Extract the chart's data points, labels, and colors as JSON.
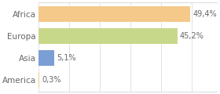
{
  "categories": [
    "Africa",
    "Europa",
    "Asia",
    "America"
  ],
  "values": [
    49.4,
    45.2,
    5.1,
    0.3
  ],
  "labels": [
    "49,4%",
    "45,2%",
    "5,1%",
    "0,3%"
  ],
  "bar_colors": [
    "#f5c98a",
    "#c8d88a",
    "#7b9fd4",
    "#f5c98a"
  ],
  "background_color": "#ffffff",
  "text_color": "#666666",
  "xlim": [
    0,
    58
  ],
  "bar_height": 0.72,
  "label_fontsize": 7,
  "tick_fontsize": 7.5,
  "grid_color": "#dddddd",
  "grid_ticks": [
    0,
    10,
    20,
    30,
    40,
    50
  ]
}
